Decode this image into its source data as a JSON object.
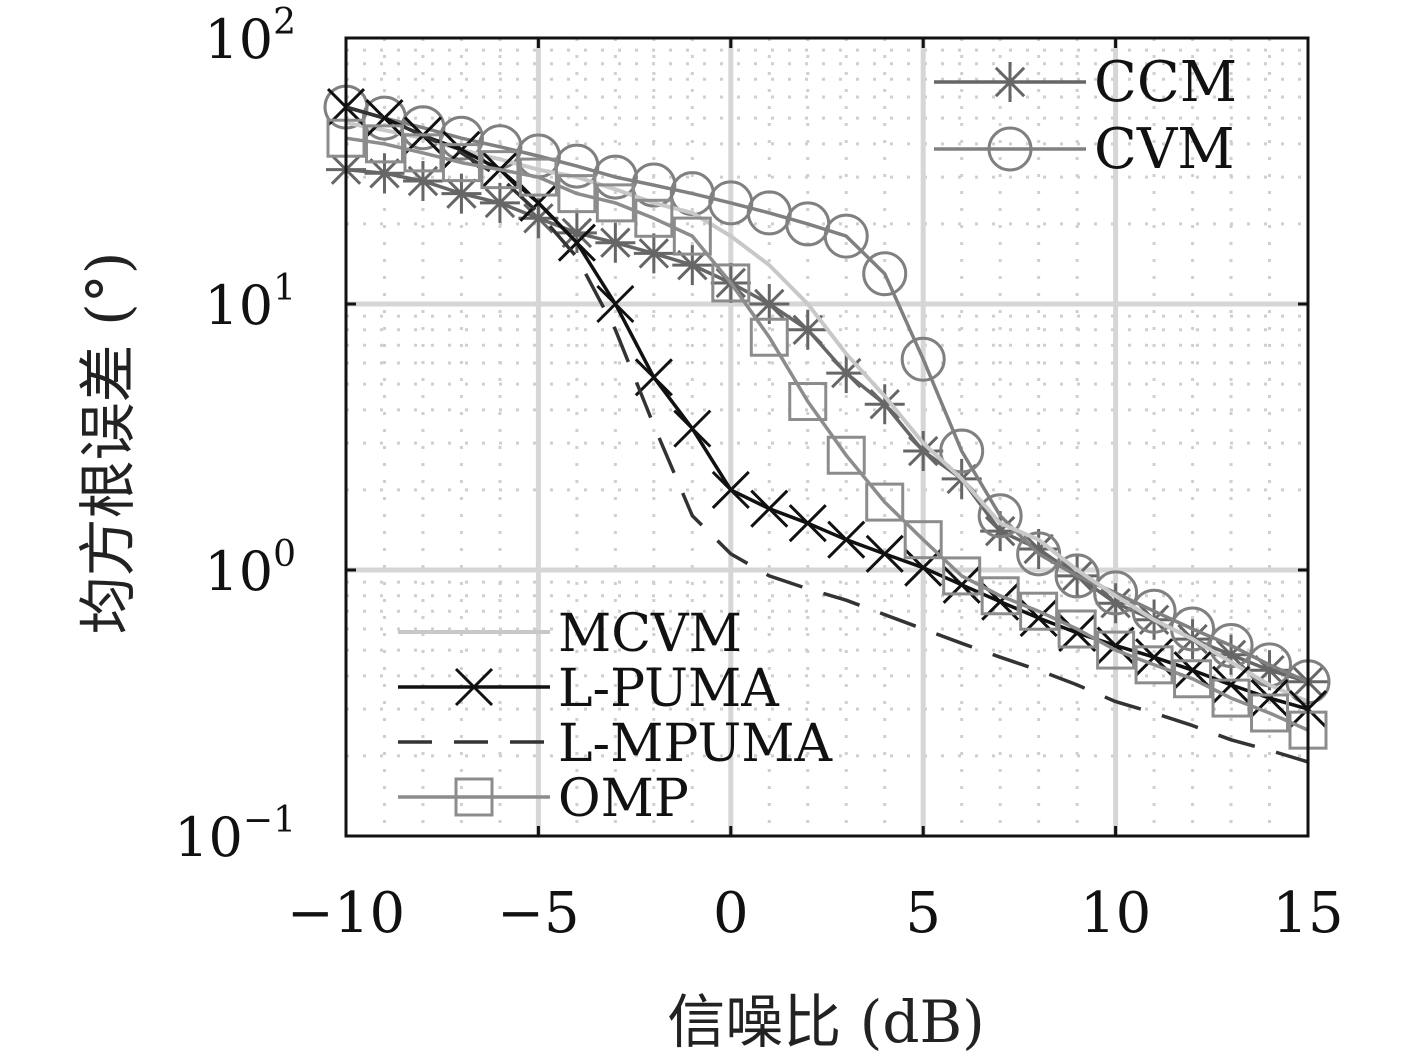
{
  "chart_data": {
    "type": "line",
    "xlabel": "信噪比 (dB)",
    "ylabel": "均方根误差 (°)",
    "xlim": [
      -10,
      15
    ],
    "ylim": [
      0.1,
      100
    ],
    "yscale": "log",
    "x_ticks": [
      -10,
      -5,
      0,
      5,
      10,
      15
    ],
    "x_tick_labels": [
      "−10",
      "−5",
      "0",
      "5",
      "10",
      "15"
    ],
    "y_ticks": [
      {
        "value": 100,
        "base": "10",
        "exp": "2"
      },
      {
        "value": 10,
        "base": "10",
        "exp": "1"
      },
      {
        "value": 1,
        "base": "10",
        "exp": "0"
      },
      {
        "value": 0.1,
        "base": "10",
        "exp": "−1"
      }
    ],
    "grid": true,
    "legend_placement": [
      "top-right",
      "bottom-left"
    ],
    "x": [
      -10,
      -9,
      -8,
      -7,
      -6,
      -5,
      -4,
      -3,
      -2,
      -1,
      0,
      1,
      2,
      3,
      4,
      5,
      6,
      7,
      8,
      9,
      10,
      11,
      12,
      13,
      14,
      15
    ],
    "series": [
      {
        "name": "CCM",
        "color": "#666666",
        "marker": "asterisk",
        "dash": "solid",
        "legend_group": 0,
        "values": [
          32,
          31,
          29,
          26,
          24,
          21,
          18.5,
          17,
          15.5,
          14,
          12,
          10,
          8,
          5.5,
          4.2,
          2.8,
          2.2,
          1.4,
          1.2,
          0.95,
          0.75,
          0.65,
          0.55,
          0.48,
          0.42,
          0.38
        ]
      },
      {
        "name": "CVM",
        "color": "#808080",
        "marker": "circle",
        "dash": "solid",
        "legend_group": 0,
        "values": [
          55,
          50,
          46,
          42,
          39,
          36,
          33,
          30,
          28,
          26,
          24,
          22,
          20,
          18,
          13,
          6.2,
          2.8,
          1.6,
          1.15,
          0.95,
          0.82,
          0.7,
          0.6,
          0.52,
          0.44,
          0.38
        ]
      },
      {
        "name": "MCVM",
        "color": "#c8c8c8",
        "marker": "none",
        "dash": "solid",
        "legend_group": 1,
        "values": [
          48,
          45,
          42,
          38,
          35,
          32,
          30,
          27,
          24,
          22,
          18,
          14,
          10,
          6.5,
          4.5,
          3,
          2.2,
          1.5,
          1.3,
          1,
          0.8,
          0.65,
          0.55,
          0.45,
          0.37,
          0.32
        ]
      },
      {
        "name": "L-PUMA",
        "color": "#111111",
        "marker": "x",
        "dash": "solid",
        "legend_group": 1,
        "values": [
          55,
          50,
          43,
          38,
          32,
          24,
          17,
          10,
          5.3,
          3.4,
          2,
          1.7,
          1.5,
          1.3,
          1.15,
          1.02,
          0.88,
          0.76,
          0.66,
          0.58,
          0.52,
          0.47,
          0.42,
          0.37,
          0.33,
          0.3
        ]
      },
      {
        "name": "L-MPUMA",
        "color": "#333333",
        "marker": "none",
        "dash": "dashed",
        "legend_group": 1,
        "values": [
          55,
          50,
          43,
          37,
          30,
          22,
          15,
          8,
          3.5,
          1.6,
          1.15,
          0.95,
          0.85,
          0.77,
          0.68,
          0.6,
          0.53,
          0.47,
          0.42,
          0.37,
          0.32,
          0.29,
          0.26,
          0.23,
          0.21,
          0.19
        ]
      },
      {
        "name": "OMP",
        "color": "#8c8c8c",
        "marker": "square",
        "dash": "solid",
        "legend_group": 1,
        "values": [
          42,
          40,
          37,
          34,
          32,
          30,
          26,
          24,
          21,
          18,
          12,
          7.5,
          4.3,
          2.7,
          1.8,
          1.3,
          0.95,
          0.8,
          0.7,
          0.6,
          0.5,
          0.44,
          0.39,
          0.33,
          0.29,
          0.25
        ]
      }
    ]
  }
}
